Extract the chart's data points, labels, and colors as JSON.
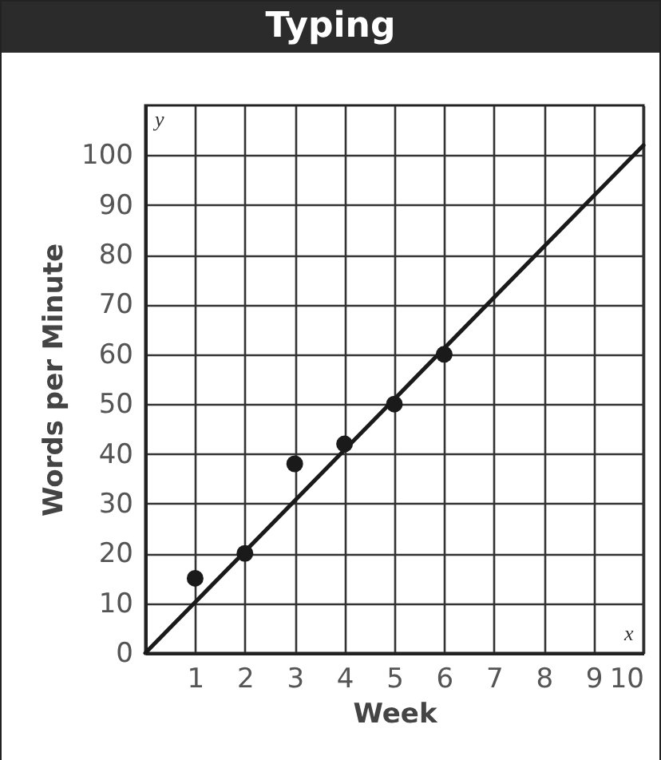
{
  "chart_data": {
    "type": "scatter",
    "title": "Typing",
    "xlabel": "Week",
    "ylabel": "Words per Minute",
    "annotations": [
      "y",
      "x"
    ],
    "xlim": [
      0,
      10
    ],
    "xticks": [
      1,
      2,
      3,
      4,
      5,
      6,
      7,
      8,
      9,
      10
    ],
    "ylim": [
      0,
      110
    ],
    "yticks": [
      0,
      10,
      20,
      30,
      40,
      50,
      60,
      70,
      80,
      90,
      100
    ],
    "grid": true,
    "series": [
      {
        "type": "scatter",
        "color": "#1a1a1a",
        "x": [
          1,
          2,
          3,
          4,
          5,
          6
        ],
        "values": [
          15,
          20,
          38,
          42,
          50,
          60
        ]
      },
      {
        "type": "line",
        "color": "#1a1a1a",
        "x": [
          0,
          10
        ],
        "values": [
          0,
          102
        ]
      }
    ]
  }
}
